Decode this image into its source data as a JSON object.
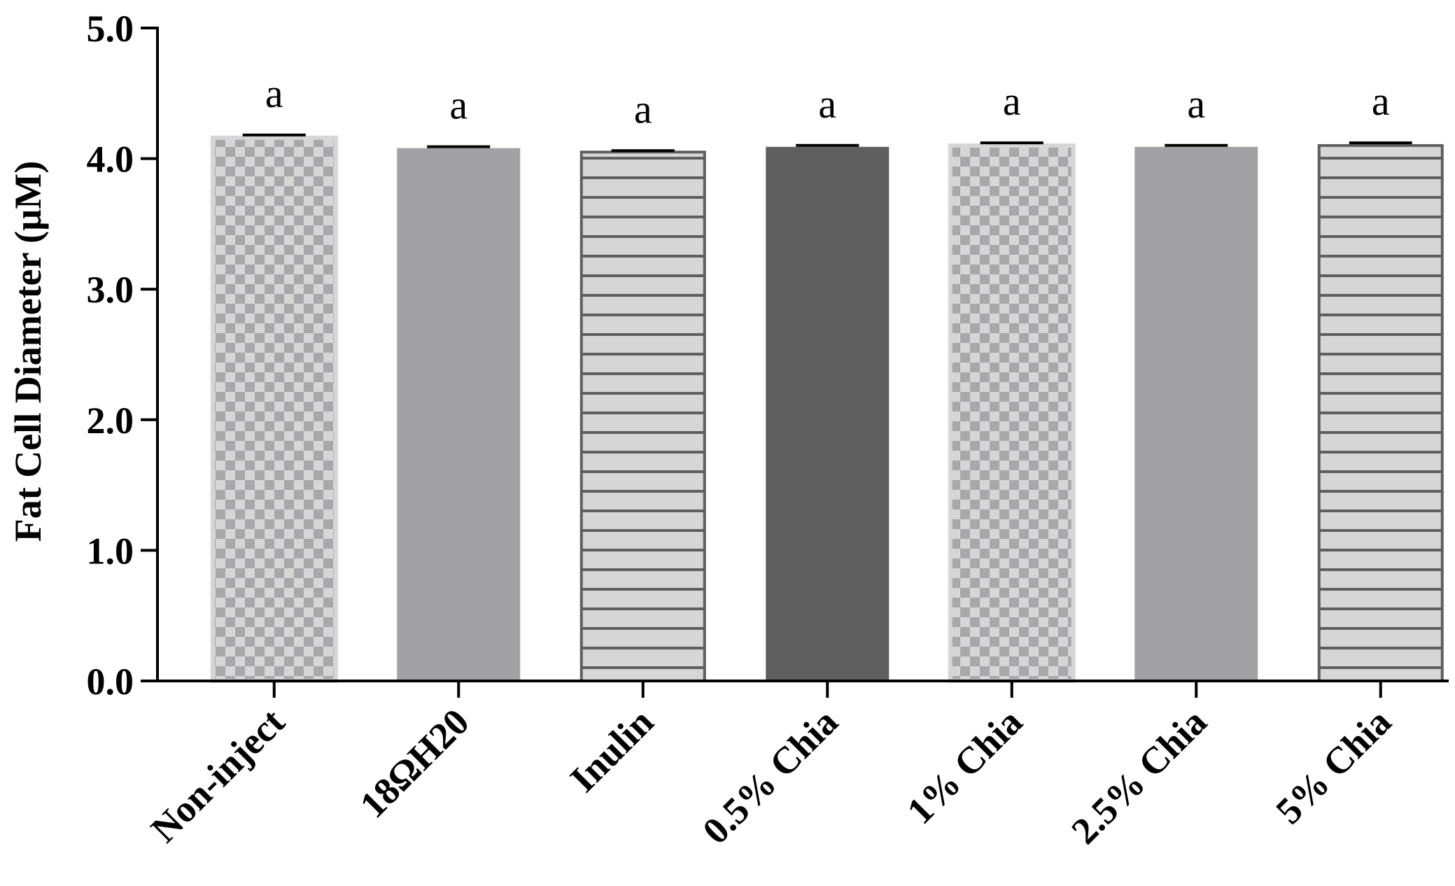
{
  "chart_data": {
    "type": "bar",
    "title": "",
    "xlabel": "",
    "ylabel": "Fat Cell Diameter (µM)",
    "ylim": [
      0,
      5.0
    ],
    "yticks": [
      "0.0",
      "1.0",
      "2.0",
      "3.0",
      "4.0",
      "5.0"
    ],
    "categories": [
      "Non-inject",
      "18ΩH20",
      "Inulin",
      "0.5% Chia",
      "1% Chia",
      "2.5% Chia",
      "5% Chia"
    ],
    "values": [
      4.16,
      4.08,
      4.05,
      4.09,
      4.1,
      4.09,
      4.1
    ],
    "errors": [
      0.01,
      0.0,
      0.0,
      0.0,
      0.01,
      0.0,
      0.01
    ],
    "significance": [
      "a",
      "a",
      "a",
      "a",
      "a",
      "a",
      "a"
    ],
    "grid": false,
    "bar_styles": [
      {
        "pattern": "checker",
        "fill": "#d6d6d6",
        "alt": "#a8a7ab"
      },
      {
        "pattern": "solid",
        "fill": "#a2a1a6"
      },
      {
        "pattern": "hlines",
        "fill": "#d6d6d6",
        "stroke": "#5f5f5f"
      },
      {
        "pattern": "solid",
        "fill": "#5f5f5f"
      },
      {
        "pattern": "checker",
        "fill": "#d6d6d6",
        "alt": "#a8a7ab"
      },
      {
        "pattern": "solid",
        "fill": "#a2a1a6"
      },
      {
        "pattern": "hlines",
        "fill": "#d6d6d6",
        "stroke": "#5f5f5f"
      }
    ]
  }
}
